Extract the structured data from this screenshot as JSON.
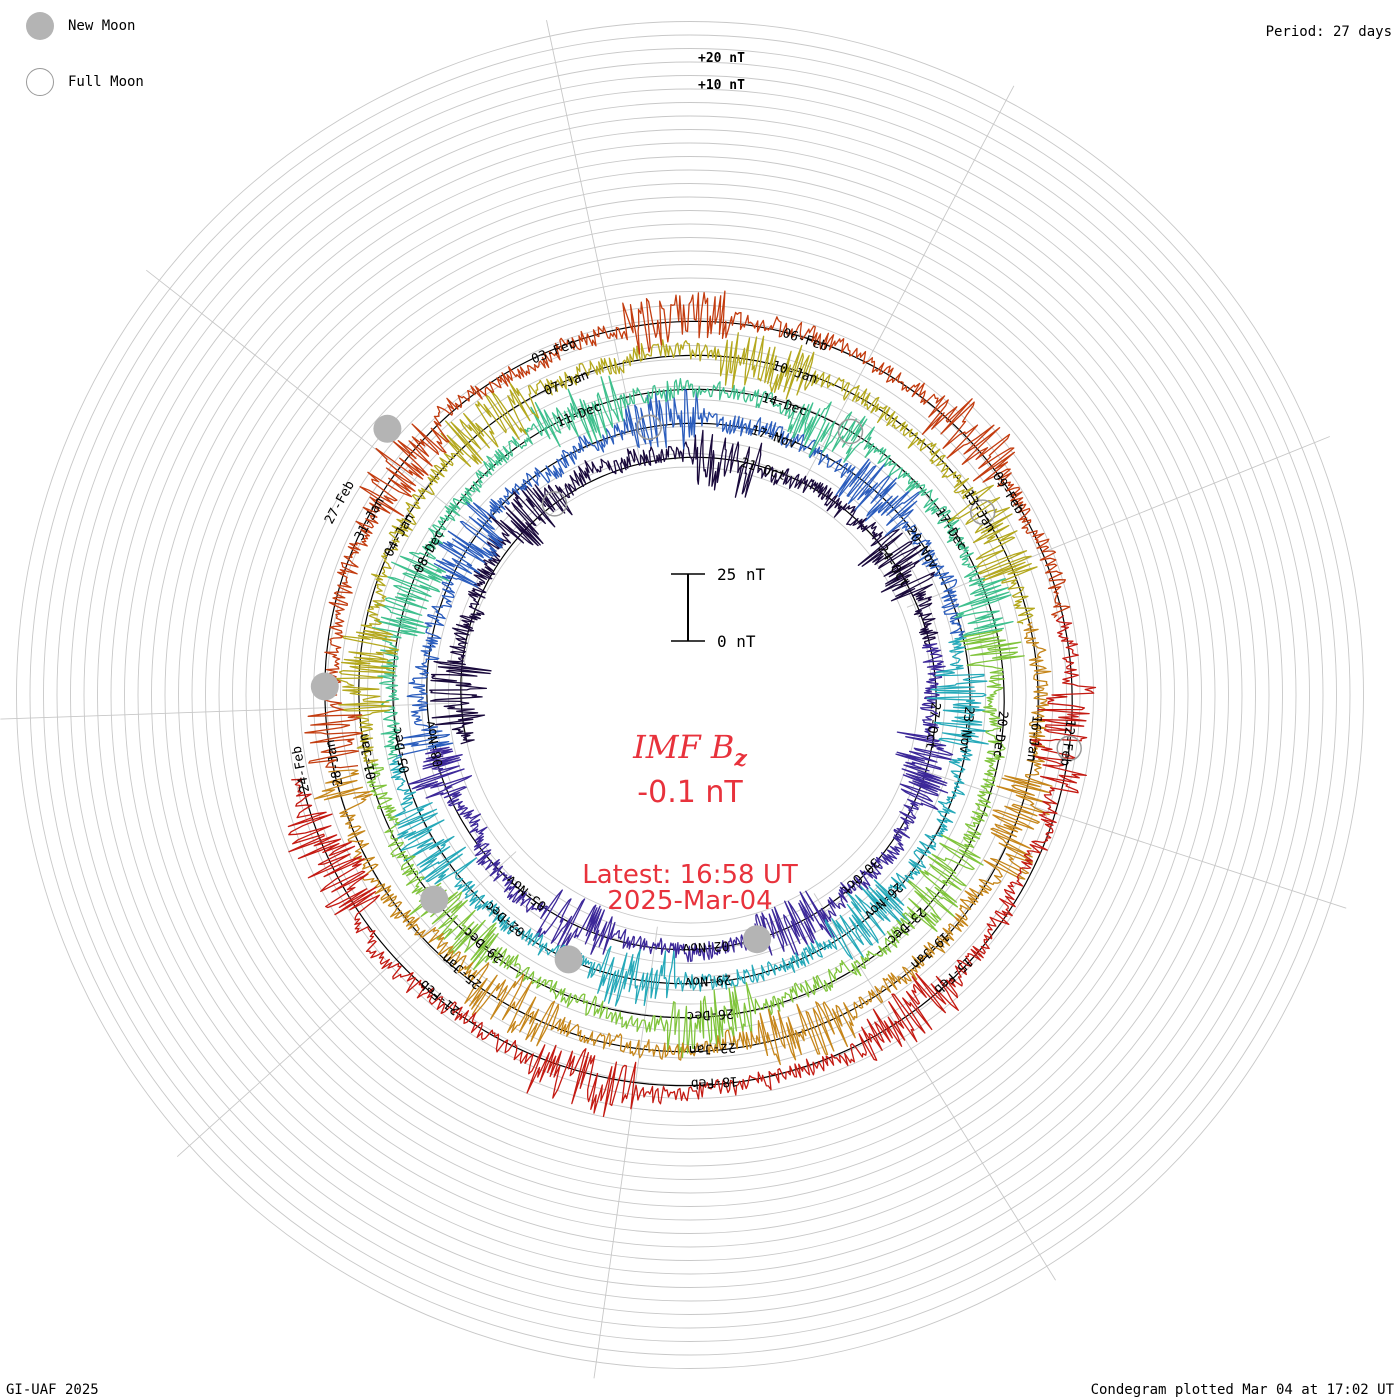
{
  "chart_data": {
    "type": "line",
    "title": "IMF Bz",
    "param_main": "IMF B",
    "param_sub": "z",
    "current_value": "-0.1 nT",
    "latest_time": "Latest: 16:58 UT",
    "latest_date": "2025-Mar-04",
    "period": "Period: 27 days",
    "credit": "GI-UAF 2025",
    "plotted": "Condegram plotted Mar 04 at 17:02 UT",
    "scale_bar": {
      "top_label": "25 nT",
      "bottom_label": "0 nT"
    },
    "ring_scale_labels": [
      "+20 nT",
      "+10 nT"
    ],
    "legend": {
      "new_moon": "New Moon",
      "full_moon": "Full Moon"
    },
    "unit": "nT",
    "colors": [
      "#1a0a3c",
      "#3c2899",
      "#2b5dbd",
      "#26a9b9",
      "#3fc08e",
      "#80c43c",
      "#b4a81e",
      "#c6861a",
      "#c33c0f",
      "#c41a12"
    ],
    "rotations": [
      {
        "start": "2024-10-12",
        "labels": [
          {
            "text": "21-Oct",
            "pos": 0.0
          },
          {
            "text": "24-Oct",
            "pos": 0.11
          },
          {
            "text": "27-Oct",
            "pos": 0.22
          },
          {
            "text": "30-Oct",
            "pos": 0.33
          },
          {
            "text": "02-Nov",
            "pos": 0.44
          },
          {
            "text": "05-Nov",
            "pos": 0.56
          },
          {
            "text": "08-Nov",
            "pos": 0.67
          }
        ]
      },
      {
        "start": "2024-11-08",
        "labels": [
          {
            "text": "17-Nov",
            "pos": 0.0
          },
          {
            "text": "20-Nov",
            "pos": 0.11
          },
          {
            "text": "23-Nov",
            "pos": 0.22
          },
          {
            "text": "26-Nov",
            "pos": 0.33
          },
          {
            "text": "29-Nov",
            "pos": 0.44
          },
          {
            "text": "02-Dec",
            "pos": 0.56
          },
          {
            "text": "05-Dec",
            "pos": 0.67
          },
          {
            "text": "08-Dec",
            "pos": 0.78
          },
          {
            "text": "11-Dec",
            "pos": 0.89
          }
        ]
      },
      {
        "start": "2024-12-05",
        "labels": [
          {
            "text": "14-Dec",
            "pos": 0.0
          },
          {
            "text": "17-Dec",
            "pos": 0.11
          },
          {
            "text": "20-Dec",
            "pos": 0.22
          },
          {
            "text": "23-Dec",
            "pos": 0.33
          },
          {
            "text": "26-Dec",
            "pos": 0.44
          },
          {
            "text": "29-Dec",
            "pos": 0.56
          },
          {
            "text": "01-Jan",
            "pos": 0.67
          },
          {
            "text": "04-Jan",
            "pos": 0.78
          },
          {
            "text": "07-Jan",
            "pos": 0.89
          }
        ]
      },
      {
        "start": "2025-01-01",
        "labels": [
          {
            "text": "10-Jan",
            "pos": 0.0
          },
          {
            "text": "13-Jan",
            "pos": 0.11
          },
          {
            "text": "16-Jan",
            "pos": 0.22
          },
          {
            "text": "19-Jan",
            "pos": 0.33
          },
          {
            "text": "22-Jan",
            "pos": 0.44
          },
          {
            "text": "25-Jan",
            "pos": 0.56
          },
          {
            "text": "28-Jan",
            "pos": 0.67
          },
          {
            "text": "31-Jan",
            "pos": 0.78
          },
          {
            "text": "03-Feb",
            "pos": 0.89
          }
        ]
      },
      {
        "start": "2025-01-28",
        "labels": [
          {
            "text": "06-Feb",
            "pos": 0.0
          },
          {
            "text": "09-Feb",
            "pos": 0.11
          },
          {
            "text": "12-Feb",
            "pos": 0.22
          },
          {
            "text": "15-Feb",
            "pos": 0.33
          },
          {
            "text": "18-Feb",
            "pos": 0.44
          },
          {
            "text": "21-Feb",
            "pos": 0.56
          },
          {
            "text": "24-Feb",
            "pos": 0.67
          },
          {
            "text": "27-Feb",
            "pos": 0.78
          }
        ]
      }
    ],
    "new_moons": [
      "2024-11-01",
      "2024-12-01",
      "2024-12-30",
      "2025-01-29",
      "2025-02-28"
    ],
    "full_moons": [
      "2024-10-17",
      "2024-11-15",
      "2024-12-15",
      "2025-01-13",
      "2025-02-12"
    ]
  }
}
